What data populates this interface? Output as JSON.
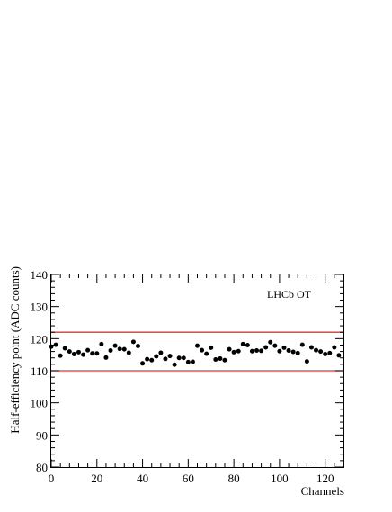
{
  "chart_data": {
    "type": "scatter",
    "title": "",
    "annotation": "LHCb OT",
    "xlabel": "Channels",
    "ylabel": "Half-efficiency point (ADC counts)",
    "xlim": [
      0,
      128
    ],
    "ylim": [
      80,
      140
    ],
    "x_ticks": [
      0,
      20,
      40,
      60,
      80,
      100,
      120
    ],
    "y_ticks": [
      80,
      90,
      100,
      110,
      120,
      130,
      140
    ],
    "grid": false,
    "reference_lines": [
      {
        "axis": "y",
        "value": 122,
        "color": "#e8312a"
      },
      {
        "axis": "y",
        "value": 110,
        "color": "#e8312a"
      }
    ],
    "marker_color": "#000000",
    "series": [
      {
        "x": [
          0,
          2,
          4,
          6,
          8,
          10,
          12,
          14,
          16,
          18,
          20,
          22,
          24,
          26,
          28,
          30,
          32,
          34,
          36,
          38,
          40,
          42,
          44,
          46,
          48,
          50,
          52,
          54,
          56,
          58,
          60,
          62,
          64,
          66,
          68,
          70,
          72,
          74,
          76,
          78,
          80,
          82,
          84,
          86,
          88,
          90,
          92,
          94,
          96,
          98,
          100,
          102,
          104,
          106,
          108,
          110,
          112,
          114,
          116,
          118,
          120,
          122,
          124,
          126
        ],
        "y": [
          117.5,
          118.1,
          114.7,
          117.0,
          116.0,
          115.2,
          115.8,
          115.0,
          116.4,
          115.4,
          115.4,
          118.3,
          114.1,
          116.3,
          117.8,
          116.8,
          116.7,
          115.6,
          119.0,
          117.7,
          112.3,
          113.6,
          113.3,
          114.5,
          115.6,
          113.7,
          114.6,
          111.9,
          114.0,
          114.0,
          112.7,
          112.8,
          117.8,
          116.4,
          115.3,
          117.2,
          113.5,
          113.8,
          113.3,
          116.7,
          115.8,
          116.1,
          118.3,
          118.0,
          116.1,
          116.3,
          116.2,
          117.3,
          118.9,
          117.8,
          116.1,
          117.2,
          116.3,
          115.9,
          115.5,
          118.1,
          112.9,
          117.3,
          116.4,
          116.0,
          115.2,
          115.5,
          117.3,
          114.8
        ]
      }
    ]
  }
}
